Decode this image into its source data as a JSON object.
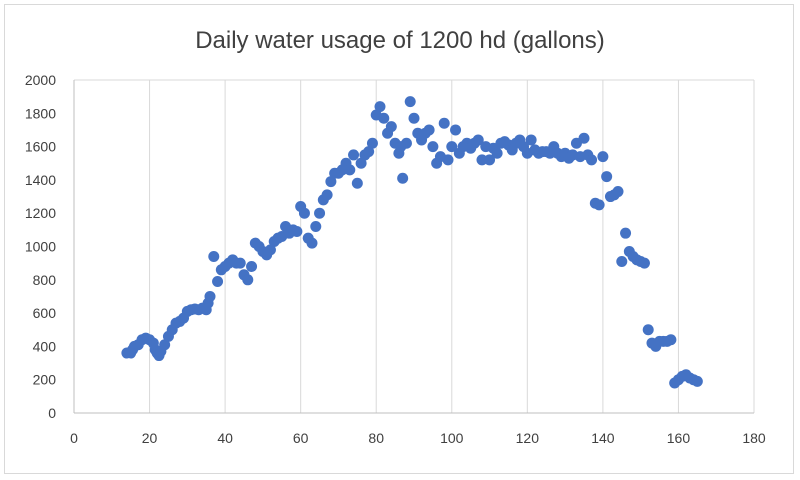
{
  "chart_data": {
    "type": "scatter",
    "title": "Daily water usage of 1200 hd (gallons)",
    "xlabel": "",
    "ylabel": "",
    "xlim": [
      0,
      180
    ],
    "ylim": [
      0,
      2000
    ],
    "x_ticks": [
      "0",
      "20",
      "40",
      "60",
      "80",
      "100",
      "120",
      "140",
      "160",
      "180"
    ],
    "y_ticks": [
      "0",
      "200",
      "400",
      "600",
      "800",
      "1000",
      "1200",
      "1400",
      "1600",
      "1800",
      "2000"
    ],
    "x_tick_values": [
      0,
      20,
      40,
      60,
      80,
      100,
      120,
      140,
      160,
      180
    ],
    "y_tick_values": [
      0,
      200,
      400,
      600,
      800,
      1000,
      1200,
      1400,
      1600,
      1800,
      2000
    ],
    "grid": "vertical",
    "legend": "none",
    "marker_color": "#4472c4",
    "points": [
      [
        14,
        360
      ],
      [
        15,
        360
      ],
      [
        15.5,
        380
      ],
      [
        16,
        400
      ],
      [
        17,
        410
      ],
      [
        18,
        440
      ],
      [
        19,
        450
      ],
      [
        20,
        440
      ],
      [
        21,
        420
      ],
      [
        21.5,
        380
      ],
      [
        22,
        360
      ],
      [
        22.5,
        345
      ],
      [
        23,
        370
      ],
      [
        24,
        410
      ],
      [
        25,
        460
      ],
      [
        26,
        500
      ],
      [
        27,
        540
      ],
      [
        28,
        550
      ],
      [
        29,
        570
      ],
      [
        30,
        610
      ],
      [
        31,
        620
      ],
      [
        32,
        625
      ],
      [
        33,
        620
      ],
      [
        34,
        630
      ],
      [
        35,
        620
      ],
      [
        35.5,
        660
      ],
      [
        36,
        700
      ],
      [
        37,
        940
      ],
      [
        38,
        790
      ],
      [
        39,
        860
      ],
      [
        40,
        880
      ],
      [
        41,
        900
      ],
      [
        42,
        920
      ],
      [
        43,
        900
      ],
      [
        44,
        900
      ],
      [
        45,
        830
      ],
      [
        46,
        800
      ],
      [
        47,
        880
      ],
      [
        48,
        1020
      ],
      [
        49,
        1000
      ],
      [
        50,
        970
      ],
      [
        51,
        950
      ],
      [
        52,
        980
      ],
      [
        53,
        1030
      ],
      [
        54,
        1050
      ],
      [
        55,
        1060
      ],
      [
        56,
        1120
      ],
      [
        57,
        1080
      ],
      [
        58,
        1100
      ],
      [
        59,
        1090
      ],
      [
        60,
        1240
      ],
      [
        61,
        1200
      ],
      [
        62,
        1050
      ],
      [
        63,
        1020
      ],
      [
        64,
        1120
      ],
      [
        65,
        1200
      ],
      [
        66,
        1280
      ],
      [
        67,
        1310
      ],
      [
        68,
        1390
      ],
      [
        69,
        1440
      ],
      [
        70,
        1440
      ],
      [
        71,
        1460
      ],
      [
        72,
        1500
      ],
      [
        73,
        1460
      ],
      [
        74,
        1550
      ],
      [
        75,
        1380
      ],
      [
        76,
        1500
      ],
      [
        77,
        1550
      ],
      [
        78,
        1570
      ],
      [
        79,
        1620
      ],
      [
        80,
        1790
      ],
      [
        81,
        1840
      ],
      [
        82,
        1770
      ],
      [
        83,
        1680
      ],
      [
        84,
        1720
      ],
      [
        85,
        1620
      ],
      [
        86,
        1560
      ],
      [
        86.5,
        1600
      ],
      [
        87,
        1410
      ],
      [
        88,
        1620
      ],
      [
        89,
        1870
      ],
      [
        90,
        1770
      ],
      [
        91,
        1680
      ],
      [
        92,
        1640
      ],
      [
        93,
        1680
      ],
      [
        94,
        1700
      ],
      [
        95,
        1600
      ],
      [
        96,
        1500
      ],
      [
        97,
        1540
      ],
      [
        98,
        1740
      ],
      [
        99,
        1520
      ],
      [
        100,
        1600
      ],
      [
        101,
        1700
      ],
      [
        102,
        1560
      ],
      [
        103,
        1600
      ],
      [
        104,
        1620
      ],
      [
        105,
        1590
      ],
      [
        106,
        1620
      ],
      [
        107,
        1640
      ],
      [
        108,
        1520
      ],
      [
        109,
        1600
      ],
      [
        110,
        1520
      ],
      [
        111,
        1590
      ],
      [
        112,
        1560
      ],
      [
        113,
        1620
      ],
      [
        114,
        1630
      ],
      [
        115,
        1610
      ],
      [
        116,
        1580
      ],
      [
        117,
        1620
      ],
      [
        118,
        1640
      ],
      [
        119,
        1600
      ],
      [
        120,
        1560
      ],
      [
        121,
        1640
      ],
      [
        122,
        1580
      ],
      [
        123,
        1560
      ],
      [
        124,
        1570
      ],
      [
        125,
        1570
      ],
      [
        126,
        1560
      ],
      [
        127,
        1600
      ],
      [
        128,
        1560
      ],
      [
        129,
        1540
      ],
      [
        130,
        1560
      ],
      [
        131,
        1530
      ],
      [
        132,
        1550
      ],
      [
        133,
        1620
      ],
      [
        134,
        1540
      ],
      [
        135,
        1650
      ],
      [
        136,
        1550
      ],
      [
        137,
        1520
      ],
      [
        138,
        1260
      ],
      [
        139,
        1250
      ],
      [
        140,
        1540
      ],
      [
        141,
        1420
      ],
      [
        142,
        1300
      ],
      [
        143,
        1310
      ],
      [
        144,
        1330
      ],
      [
        145,
        910
      ],
      [
        146,
        1080
      ],
      [
        147,
        970
      ],
      [
        148,
        940
      ],
      [
        149,
        920
      ],
      [
        150,
        910
      ],
      [
        151,
        900
      ],
      [
        152,
        500
      ],
      [
        153,
        420
      ],
      [
        154,
        400
      ],
      [
        155,
        430
      ],
      [
        156,
        430
      ],
      [
        157,
        430
      ],
      [
        158,
        440
      ],
      [
        159,
        180
      ],
      [
        160,
        200
      ],
      [
        161,
        220
      ],
      [
        162,
        230
      ],
      [
        163,
        210
      ],
      [
        164,
        200
      ],
      [
        165,
        190
      ]
    ]
  }
}
